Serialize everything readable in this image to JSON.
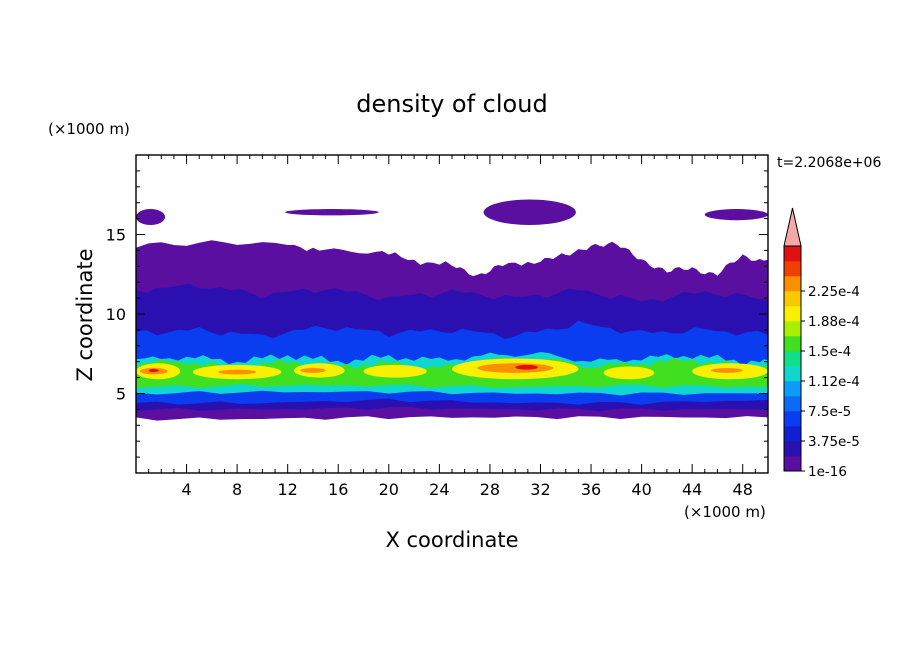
{
  "chart_data": {
    "type": "heatmap",
    "title": "density of cloud",
    "xlabel": "X coordinate",
    "ylabel": "Z coordinate",
    "x_unit": "(×1000 m)",
    "y_unit": "(×1000 m)",
    "time_label": "t=2.2068e+06",
    "xlim": [
      0,
      50
    ],
    "ylim": [
      0,
      20
    ],
    "x_ticks": [
      4,
      8,
      12,
      16,
      20,
      24,
      28,
      32,
      36,
      40,
      44,
      48
    ],
    "y_ticks": [
      5,
      10,
      15
    ],
    "colorbar": {
      "levels": [
        1e-16,
        1.875e-05,
        3.75e-05,
        5.625e-05,
        7.5e-05,
        9.375e-05,
        0.0001125,
        0.00013125,
        0.00015,
        0.00016875,
        0.0001875,
        0.00020625,
        0.000225,
        0.00024375
      ],
      "labels": [
        "1e-16",
        "3.75e-5",
        "7.5e-5",
        "1.12e-4",
        "1.5e-4",
        "1.88e-4",
        "2.25e-4"
      ],
      "colors": [
        "#5a0fa0",
        "#2a10b0",
        "#1020d0",
        "#0a3cf0",
        "#0a6cf5",
        "#0a9cf8",
        "#10d6d0",
        "#10e088",
        "#40e020",
        "#a8f000",
        "#f8f000",
        "#f8c800",
        "#f89000",
        "#f04000",
        "#e01010"
      ],
      "extend_color": "#f4a8a8"
    },
    "layers": [
      {
        "name": "cloud-top-patches",
        "level": 0,
        "patches": [
          [
            0,
            15.6,
            2.3,
            16.6
          ],
          [
            11.8,
            16.2,
            19.2,
            16.6
          ],
          [
            27.5,
            15.6,
            34.8,
            17.2
          ],
          [
            45.0,
            15.9,
            50,
            16.6
          ]
        ]
      },
      {
        "name": "upper-layer",
        "level": 0,
        "top": [
          [
            0,
            14.3
          ],
          [
            6,
            14.5
          ],
          [
            12,
            14.4
          ],
          [
            15,
            14.0
          ],
          [
            19,
            13.9
          ],
          [
            22,
            13.4
          ],
          [
            25,
            13.0
          ],
          [
            27,
            12.5
          ],
          [
            29,
            13.0
          ],
          [
            32,
            13.4
          ],
          [
            34,
            13.6
          ],
          [
            36,
            14.4
          ],
          [
            38,
            14.3
          ],
          [
            40,
            13.5
          ],
          [
            42,
            12.6
          ],
          [
            44,
            12.9
          ],
          [
            46,
            12.5
          ],
          [
            48,
            13.6
          ],
          [
            50,
            13.4
          ]
        ],
        "bottom": [
          [
            0,
            3.4
          ],
          [
            10,
            3.4
          ],
          [
            20,
            3.5
          ],
          [
            30,
            3.5
          ],
          [
            40,
            3.5
          ],
          [
            50,
            3.5
          ]
        ]
      },
      {
        "name": "mid-layer",
        "level": 1,
        "top": [
          [
            0,
            11.5
          ],
          [
            5,
            11.8
          ],
          [
            10,
            11.2
          ],
          [
            15,
            11.6
          ],
          [
            20,
            11.0
          ],
          [
            25,
            11.4
          ],
          [
            30,
            11.0
          ],
          [
            35,
            11.5
          ],
          [
            40,
            10.8
          ],
          [
            45,
            11.4
          ],
          [
            50,
            10.9
          ]
        ],
        "bottom": [
          [
            0,
            4.0
          ],
          [
            10,
            4.0
          ],
          [
            20,
            4.1
          ],
          [
            30,
            4.0
          ],
          [
            40,
            4.0
          ],
          [
            50,
            4.0
          ]
        ]
      },
      {
        "name": "blue-layer",
        "level": 3,
        "top": [
          [
            0,
            8.8
          ],
          [
            5,
            9.0
          ],
          [
            10,
            8.6
          ],
          [
            15,
            9.2
          ],
          [
            20,
            8.8
          ],
          [
            25,
            9.0
          ],
          [
            30,
            8.6
          ],
          [
            35,
            9.4
          ],
          [
            40,
            8.8
          ],
          [
            45,
            9.0
          ],
          [
            50,
            8.7
          ]
        ],
        "bottom": [
          [
            0,
            4.4
          ],
          [
            10,
            4.4
          ],
          [
            20,
            4.6
          ],
          [
            30,
            4.4
          ],
          [
            40,
            4.4
          ],
          [
            50,
            4.6
          ]
        ]
      },
      {
        "name": "cyan-layer",
        "level": 6,
        "top": [
          [
            0,
            7.1
          ],
          [
            4,
            7.3
          ],
          [
            8,
            7.0
          ],
          [
            12,
            7.4
          ],
          [
            16,
            7.0
          ],
          [
            20,
            7.3
          ],
          [
            24,
            7.1
          ],
          [
            28,
            7.4
          ],
          [
            32,
            7.5
          ],
          [
            36,
            7.0
          ],
          [
            40,
            7.2
          ],
          [
            44,
            7.4
          ],
          [
            48,
            7.0
          ],
          [
            50,
            7.1
          ]
        ],
        "bottom": [
          [
            0,
            5.0
          ],
          [
            10,
            5.1
          ],
          [
            20,
            5.1
          ],
          [
            30,
            5.0
          ],
          [
            40,
            5.0
          ],
          [
            50,
            5.0
          ]
        ]
      },
      {
        "name": "green-layer",
        "level": 8,
        "top": [
          [
            0,
            6.9
          ],
          [
            4,
            7.0
          ],
          [
            8,
            6.6
          ],
          [
            12,
            7.0
          ],
          [
            16,
            6.7
          ],
          [
            20,
            6.9
          ],
          [
            24,
            6.6
          ],
          [
            28,
            7.1
          ],
          [
            32,
            7.2
          ],
          [
            36,
            6.7
          ],
          [
            40,
            6.9
          ],
          [
            44,
            7.1
          ],
          [
            48,
            6.7
          ],
          [
            50,
            6.8
          ]
        ],
        "bottom": [
          [
            0,
            5.4
          ],
          [
            10,
            5.5
          ],
          [
            20,
            5.5
          ],
          [
            30,
            5.4
          ],
          [
            40,
            5.5
          ],
          [
            50,
            5.4
          ]
        ]
      },
      {
        "name": "yellow-cores",
        "level": 10,
        "patches": [
          [
            0,
            5.9,
            3.5,
            6.9
          ],
          [
            4.5,
            5.9,
            11.5,
            6.8
          ],
          [
            12.5,
            6.0,
            16.5,
            6.9
          ],
          [
            18,
            6.0,
            23,
            6.8
          ],
          [
            25,
            5.9,
            35,
            7.2
          ],
          [
            37,
            5.9,
            41,
            6.7
          ],
          [
            44,
            5.9,
            50,
            6.9
          ]
        ]
      },
      {
        "name": "orange-cores",
        "level": 12,
        "patches": [
          [
            0.3,
            6.2,
            2.5,
            6.6
          ],
          [
            6.5,
            6.2,
            9.5,
            6.5
          ],
          [
            13,
            6.3,
            15,
            6.6
          ],
          [
            27,
            6.3,
            33,
            6.9
          ],
          [
            45.5,
            6.3,
            48,
            6.6
          ]
        ]
      },
      {
        "name": "red-cores",
        "level": 14,
        "patches": [
          [
            1.0,
            6.35,
            1.8,
            6.55
          ],
          [
            30,
            6.5,
            31.8,
            6.8
          ]
        ]
      }
    ]
  }
}
